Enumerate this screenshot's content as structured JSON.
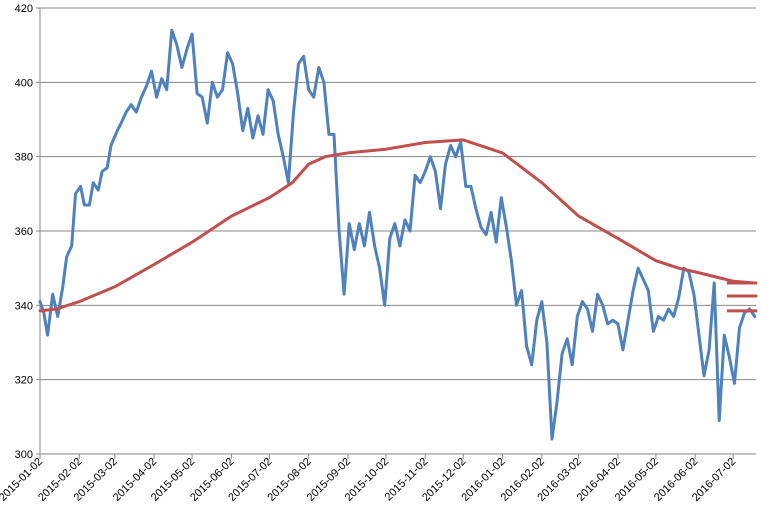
{
  "chart_data": {
    "type": "line",
    "title": "",
    "xlabel": "",
    "ylabel": "",
    "ylim": [
      300,
      420
    ],
    "yticks": [
      300,
      320,
      340,
      360,
      380,
      400,
      420
    ],
    "xtick_labels": [
      "2015-01-02",
      "2015-02-02",
      "2015-03-02",
      "2015-04-02",
      "2015-05-02",
      "2015-06-02",
      "2015-07-02",
      "2015-08-02",
      "2015-09-02",
      "2015-10-02",
      "2015-11-02",
      "2015-12-02",
      "2016-01-02",
      "2016-02-02",
      "2016-03-02",
      "2016-04-02",
      "2016-05-02",
      "2016-06-02",
      "2016-07-02"
    ],
    "grid": true,
    "legend": "none",
    "colors": {
      "price": "#4f81bd",
      "moving_average": "#c0504d",
      "grid": "#878787"
    },
    "series": [
      {
        "key": "price",
        "points": [
          [
            "2015-01-02",
            341
          ],
          [
            "2015-01-05",
            338
          ],
          [
            "2015-01-08",
            332
          ],
          [
            "2015-01-12",
            343
          ],
          [
            "2015-01-16",
            337
          ],
          [
            "2015-01-20",
            345
          ],
          [
            "2015-01-23",
            353
          ],
          [
            "2015-01-27",
            356
          ],
          [
            "2015-01-30",
            370
          ],
          [
            "2015-02-03",
            372
          ],
          [
            "2015-02-06",
            367
          ],
          [
            "2015-02-10",
            367
          ],
          [
            "2015-02-13",
            373
          ],
          [
            "2015-02-17",
            371
          ],
          [
            "2015-02-20",
            376
          ],
          [
            "2015-02-24",
            377
          ],
          [
            "2015-02-27",
            383
          ],
          [
            "2015-03-04",
            387
          ],
          [
            "2015-03-07",
            389
          ],
          [
            "2015-03-11",
            392
          ],
          [
            "2015-03-15",
            394
          ],
          [
            "2015-03-19",
            392
          ],
          [
            "2015-03-23",
            396
          ],
          [
            "2015-03-27",
            399
          ],
          [
            "2015-03-31",
            403
          ],
          [
            "2015-04-04",
            396
          ],
          [
            "2015-04-08",
            401
          ],
          [
            "2015-04-12",
            398
          ],
          [
            "2015-04-16",
            414
          ],
          [
            "2015-04-20",
            410
          ],
          [
            "2015-04-24",
            404
          ],
          [
            "2015-04-28",
            409
          ],
          [
            "2015-05-02",
            413
          ],
          [
            "2015-05-06",
            397
          ],
          [
            "2015-05-10",
            396
          ],
          [
            "2015-05-14",
            389
          ],
          [
            "2015-05-18",
            400
          ],
          [
            "2015-05-22",
            396
          ],
          [
            "2015-05-26",
            398
          ],
          [
            "2015-05-30",
            408
          ],
          [
            "2015-06-03",
            405
          ],
          [
            "2015-06-07",
            397
          ],
          [
            "2015-06-11",
            387
          ],
          [
            "2015-06-15",
            393
          ],
          [
            "2015-06-19",
            385
          ],
          [
            "2015-06-23",
            391
          ],
          [
            "2015-06-27",
            386
          ],
          [
            "2015-07-01",
            398
          ],
          [
            "2015-07-05",
            395
          ],
          [
            "2015-07-09",
            386
          ],
          [
            "2015-07-13",
            380
          ],
          [
            "2015-07-17",
            373
          ],
          [
            "2015-07-21",
            392
          ],
          [
            "2015-07-25",
            405
          ],
          [
            "2015-07-29",
            407
          ],
          [
            "2015-08-02",
            398
          ],
          [
            "2015-08-06",
            396
          ],
          [
            "2015-08-10",
            404
          ],
          [
            "2015-08-14",
            400
          ],
          [
            "2015-08-18",
            386
          ],
          [
            "2015-08-22",
            386
          ],
          [
            "2015-08-26",
            360
          ],
          [
            "2015-08-30",
            343
          ],
          [
            "2015-09-03",
            362
          ],
          [
            "2015-09-07",
            355
          ],
          [
            "2015-09-11",
            362
          ],
          [
            "2015-09-15",
            356
          ],
          [
            "2015-09-19",
            365
          ],
          [
            "2015-09-23",
            356
          ],
          [
            "2015-09-27",
            350
          ],
          [
            "2015-10-01",
            340
          ],
          [
            "2015-10-05",
            358
          ],
          [
            "2015-10-09",
            362
          ],
          [
            "2015-10-13",
            356
          ],
          [
            "2015-10-17",
            363
          ],
          [
            "2015-10-21",
            360
          ],
          [
            "2015-10-25",
            375
          ],
          [
            "2015-10-29",
            373
          ],
          [
            "2015-11-02",
            376
          ],
          [
            "2015-11-06",
            380
          ],
          [
            "2015-11-10",
            376
          ],
          [
            "2015-11-14",
            366
          ],
          [
            "2015-11-18",
            378
          ],
          [
            "2015-11-22",
            383
          ],
          [
            "2015-11-26",
            380
          ],
          [
            "2015-11-30",
            384
          ],
          [
            "2015-12-04",
            372
          ],
          [
            "2015-12-08",
            372
          ],
          [
            "2015-12-12",
            366
          ],
          [
            "2015-12-16",
            361
          ],
          [
            "2015-12-20",
            359
          ],
          [
            "2015-12-24",
            365
          ],
          [
            "2015-12-28",
            357
          ],
          [
            "2016-01-01",
            369
          ],
          [
            "2016-01-05",
            361
          ],
          [
            "2016-01-09",
            352
          ],
          [
            "2016-01-13",
            340
          ],
          [
            "2016-01-17",
            344
          ],
          [
            "2016-01-21",
            329
          ],
          [
            "2016-01-25",
            324
          ],
          [
            "2016-01-29",
            336
          ],
          [
            "2016-02-02",
            341
          ],
          [
            "2016-02-06",
            330
          ],
          [
            "2016-02-10",
            304
          ],
          [
            "2016-02-14",
            314
          ],
          [
            "2016-02-18",
            327
          ],
          [
            "2016-02-22",
            331
          ],
          [
            "2016-02-26",
            324
          ],
          [
            "2016-03-01",
            337
          ],
          [
            "2016-03-05",
            341
          ],
          [
            "2016-03-09",
            339
          ],
          [
            "2016-03-13",
            333
          ],
          [
            "2016-03-17",
            343
          ],
          [
            "2016-03-21",
            340
          ],
          [
            "2016-03-25",
            335
          ],
          [
            "2016-03-29",
            336
          ],
          [
            "2016-04-02",
            335
          ],
          [
            "2016-04-06",
            328
          ],
          [
            "2016-04-10",
            336
          ],
          [
            "2016-04-14",
            344
          ],
          [
            "2016-04-18",
            350
          ],
          [
            "2016-04-22",
            347
          ],
          [
            "2016-04-26",
            344
          ],
          [
            "2016-04-30",
            333
          ],
          [
            "2016-05-04",
            337
          ],
          [
            "2016-05-08",
            336
          ],
          [
            "2016-05-12",
            339
          ],
          [
            "2016-05-16",
            337
          ],
          [
            "2016-05-20",
            342
          ],
          [
            "2016-05-24",
            350
          ],
          [
            "2016-05-28",
            349
          ],
          [
            "2016-06-01",
            343
          ],
          [
            "2016-06-05",
            332
          ],
          [
            "2016-06-09",
            321
          ],
          [
            "2016-06-13",
            328
          ],
          [
            "2016-06-17",
            346
          ],
          [
            "2016-06-21",
            309
          ],
          [
            "2016-06-25",
            332
          ],
          [
            "2016-06-29",
            326
          ],
          [
            "2016-07-03",
            319
          ],
          [
            "2016-07-07",
            334
          ],
          [
            "2016-07-11",
            338
          ],
          [
            "2016-07-15",
            339
          ],
          [
            "2016-07-19",
            337
          ]
        ]
      },
      {
        "key": "moving_average",
        "points": [
          [
            "2015-01-02",
            338.5
          ],
          [
            "2015-01-15",
            339
          ],
          [
            "2015-02-02",
            341
          ],
          [
            "2015-03-02",
            345
          ],
          [
            "2015-04-02",
            351
          ],
          [
            "2015-05-02",
            357
          ],
          [
            "2015-06-02",
            364
          ],
          [
            "2015-07-02",
            369
          ],
          [
            "2015-07-20",
            373
          ],
          [
            "2015-08-02",
            378
          ],
          [
            "2015-08-15",
            380
          ],
          [
            "2015-09-02",
            381
          ],
          [
            "2015-10-02",
            382
          ],
          [
            "2015-11-02",
            383.8
          ],
          [
            "2015-12-02",
            384.5
          ],
          [
            "2016-01-02",
            381
          ],
          [
            "2016-02-02",
            373
          ],
          [
            "2016-03-02",
            364
          ],
          [
            "2016-04-02",
            358
          ],
          [
            "2016-05-02",
            352
          ],
          [
            "2016-05-20",
            350
          ],
          [
            "2016-06-02",
            349
          ],
          [
            "2016-06-20",
            347.5
          ],
          [
            "2016-07-02",
            346.5
          ],
          [
            "2016-07-19",
            346
          ]
        ]
      }
    ],
    "horizontal_segments": [
      {
        "y": 346,
        "x_start": "2016-06-27",
        "x_end": "2016-07-21",
        "color": "#c0504d"
      },
      {
        "y": 342.5,
        "x_start": "2016-06-27",
        "x_end": "2016-07-21",
        "color": "#c0504d"
      },
      {
        "y": 338.5,
        "x_start": "2016-06-27",
        "x_end": "2016-07-21",
        "color": "#c0504d"
      }
    ]
  }
}
